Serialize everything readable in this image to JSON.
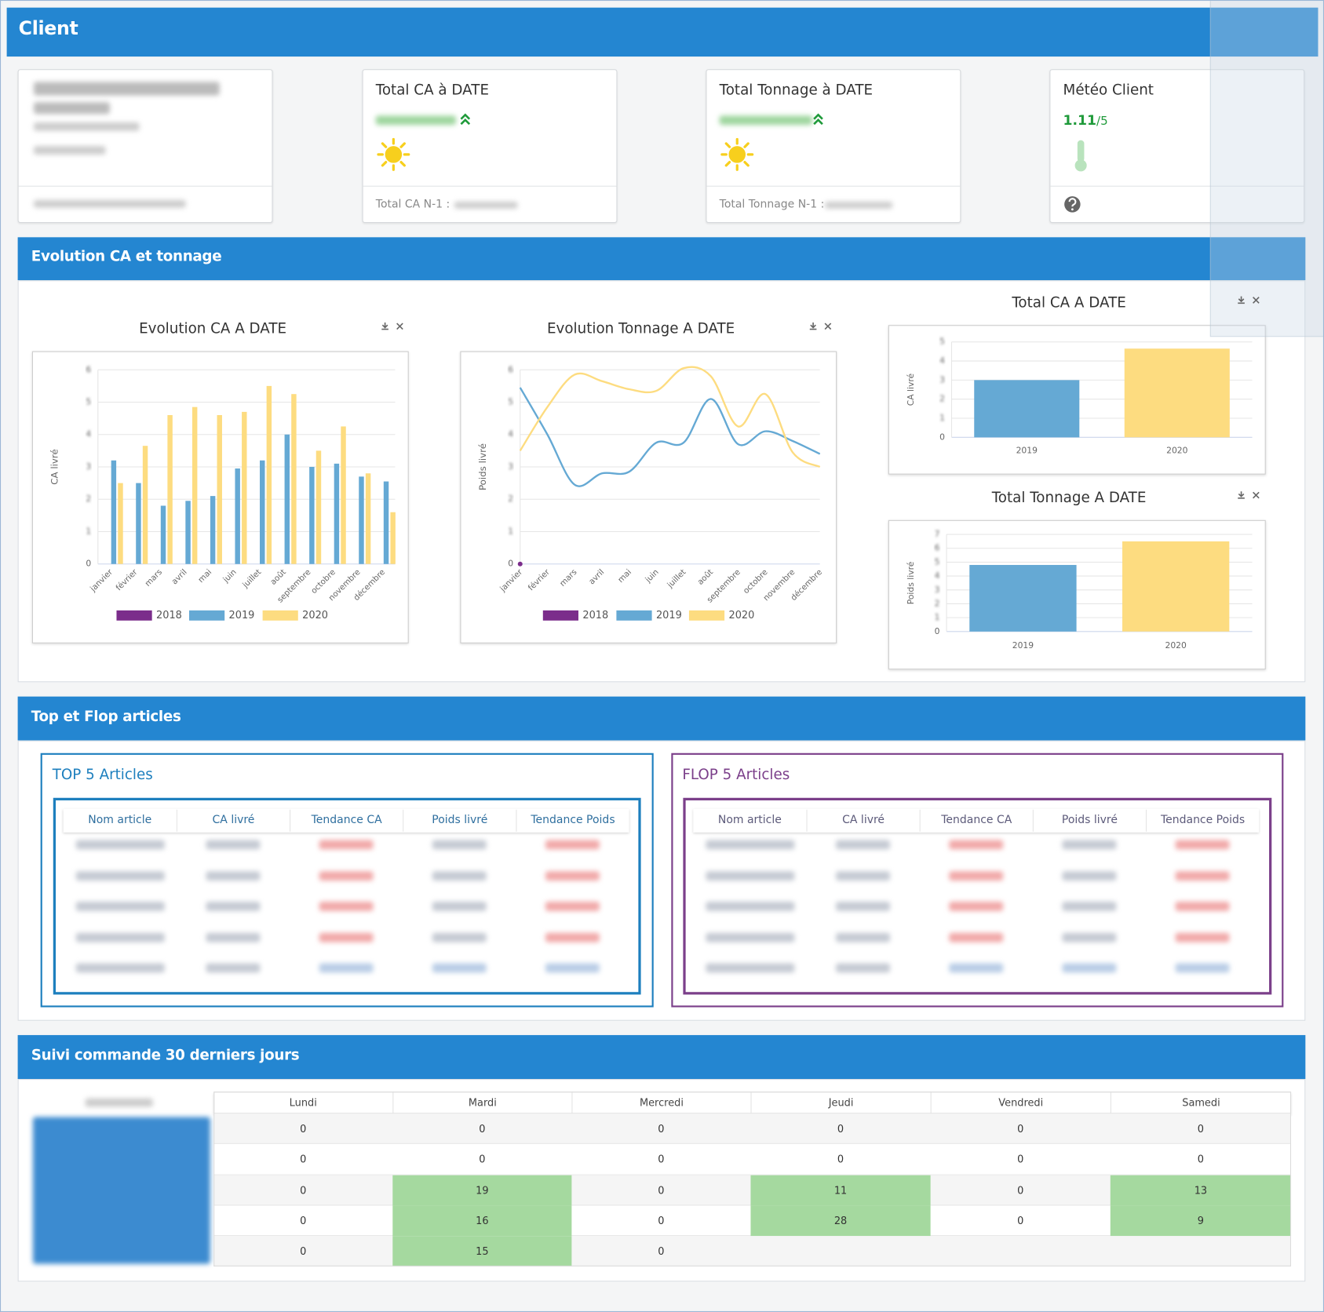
{
  "header": {
    "title": "Client"
  },
  "cards": [
    {
      "title": "Total CA à DATE",
      "footer": "Total CA N-1 :"
    },
    {
      "title": "Total Tonnage à DATE",
      "footer": "Total Tonnage N-1 :"
    },
    {
      "title": "Météo Client",
      "score": "1.11",
      "scale": "/5"
    }
  ],
  "sections": {
    "evolution": "Evolution CA et tonnage",
    "topflop": "Top et Flop articles",
    "orders": "Suivi commande 30 derniers jours"
  },
  "chart_data": [
    {
      "type": "bar",
      "title": "Evolution CA A DATE",
      "y_label": "CA livré",
      "categories": [
        "janvier",
        "février",
        "mars",
        "avril",
        "mai",
        "juin",
        "juillet",
        "août",
        "septembre",
        "octobre",
        "novembre",
        "décembre"
      ],
      "series": [
        {
          "name": "2018",
          "color": "#7b2d8b",
          "values": [
            null,
            null,
            null,
            null,
            null,
            null,
            null,
            null,
            null,
            null,
            null,
            null
          ]
        },
        {
          "name": "2019",
          "color": "#65a9d4",
          "values": [
            3.2,
            2.5,
            1.8,
            1.95,
            2.1,
            2.95,
            3.2,
            4.0,
            3.0,
            3.1,
            2.7,
            2.55
          ]
        },
        {
          "name": "2020",
          "color": "#fddc80",
          "values": [
            2.5,
            3.65,
            4.6,
            4.85,
            4.6,
            4.7,
            5.5,
            5.25,
            3.5,
            4.25,
            2.8,
            1.6
          ]
        }
      ],
      "ylim": [
        0,
        6
      ],
      "yticks": [
        0,
        1,
        2,
        3,
        4,
        5,
        6
      ],
      "grid": true
    },
    {
      "type": "line",
      "title": "Evolution Tonnage A DATE",
      "y_label": "Poids livré",
      "categories": [
        "janvier",
        "février",
        "mars",
        "avril",
        "mai",
        "juin",
        "juillet",
        "août",
        "septembre",
        "octobre",
        "novembre",
        "décembre"
      ],
      "series": [
        {
          "name": "2018",
          "color": "#7b2d8b",
          "values": [
            0,
            null,
            null,
            null,
            null,
            null,
            null,
            null,
            null,
            null,
            null,
            null
          ]
        },
        {
          "name": "2019",
          "color": "#65a9d4",
          "values": [
            5.45,
            4.0,
            2.45,
            2.8,
            2.85,
            3.75,
            3.75,
            5.1,
            3.7,
            4.1,
            3.8,
            3.4
          ]
        },
        {
          "name": "2020",
          "color": "#fddc80",
          "values": [
            3.5,
            4.85,
            5.85,
            5.65,
            5.4,
            5.35,
            6.05,
            5.8,
            4.25,
            5.25,
            3.45,
            3.0
          ]
        }
      ],
      "ylim": [
        0,
        6
      ],
      "yticks": [
        0,
        1,
        2,
        3,
        4,
        5,
        6
      ],
      "grid": true
    },
    {
      "type": "bar",
      "title": "Total CA A DATE",
      "y_label": "CA livré",
      "categories": [
        "2019",
        "2020"
      ],
      "values": [
        3.0,
        4.65
      ],
      "colors": [
        "#65a9d4",
        "#fddc80"
      ],
      "ylim": [
        0,
        5
      ],
      "yticks": [
        0,
        1,
        2,
        3,
        4,
        5
      ],
      "grid": true
    },
    {
      "type": "bar",
      "title": "Total Tonnage A DATE",
      "y_label": "Poids livré",
      "categories": [
        "2019",
        "2020"
      ],
      "values": [
        4.8,
        6.5
      ],
      "colors": [
        "#65a9d4",
        "#fddc80"
      ],
      "ylim": [
        0,
        7
      ],
      "yticks": [
        0,
        1,
        2,
        3,
        4,
        5,
        6,
        7
      ],
      "grid": true
    }
  ],
  "top": {
    "title": "TOP 5 Articles",
    "columns": [
      "Nom article",
      "CA livré",
      "Tendance CA",
      "Poids livré",
      "Tendance Poids"
    ]
  },
  "flop": {
    "title": "FLOP 5 Articles",
    "columns": [
      "Nom article",
      "CA livré",
      "Tendance CA",
      "Poids livré",
      "Tendance Poids"
    ]
  },
  "orders": {
    "columns": [
      "Lundi",
      "Mardi",
      "Mercredi",
      "Jeudi",
      "Vendredi",
      "Samedi"
    ],
    "rows": [
      [
        0,
        0,
        0,
        0,
        0,
        0
      ],
      [
        0,
        0,
        0,
        0,
        0,
        0
      ],
      [
        0,
        19,
        0,
        11,
        0,
        13
      ],
      [
        0,
        16,
        0,
        28,
        0,
        9
      ],
      [
        0,
        15,
        0,
        null,
        null,
        null
      ]
    ]
  }
}
